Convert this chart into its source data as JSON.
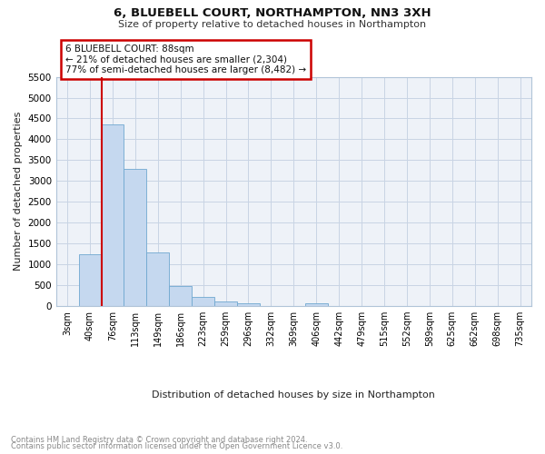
{
  "title": "6, BLUEBELL COURT, NORTHAMPTON, NN3 3XH",
  "subtitle": "Size of property relative to detached houses in Northampton",
  "xlabel": "Distribution of detached houses by size in Northampton",
  "ylabel": "Number of detached properties",
  "annotation_line1": "6 BLUEBELL COURT: 88sqm",
  "annotation_line2": "← 21% of detached houses are smaller (2,304)",
  "annotation_line3": "77% of semi-detached houses are larger (8,482) →",
  "bar_labels": [
    "3sqm",
    "40sqm",
    "76sqm",
    "113sqm",
    "149sqm",
    "186sqm",
    "223sqm",
    "259sqm",
    "296sqm",
    "332sqm",
    "369sqm",
    "406sqm",
    "442sqm",
    "479sqm",
    "515sqm",
    "552sqm",
    "589sqm",
    "625sqm",
    "662sqm",
    "698sqm",
    "735sqm"
  ],
  "bar_values": [
    0,
    1250,
    4350,
    3300,
    1280,
    480,
    220,
    100,
    60,
    0,
    0,
    60,
    0,
    0,
    0,
    0,
    0,
    0,
    0,
    0,
    0
  ],
  "bar_color": "#c5d8ef",
  "bar_edge_color": "#6fa8d0",
  "vline_color": "#cc0000",
  "vline_x_index": 2,
  "ylim": [
    0,
    5500
  ],
  "yticks": [
    0,
    500,
    1000,
    1500,
    2000,
    2500,
    3000,
    3500,
    4000,
    4500,
    5000,
    5500
  ],
  "annotation_box_color": "#cc0000",
  "bg_color": "#eef2f8",
  "grid_color": "#c8d4e4",
  "footnote1": "Contains HM Land Registry data © Crown copyright and database right 2024.",
  "footnote2": "Contains public sector information licensed under the Open Government Licence v3.0."
}
